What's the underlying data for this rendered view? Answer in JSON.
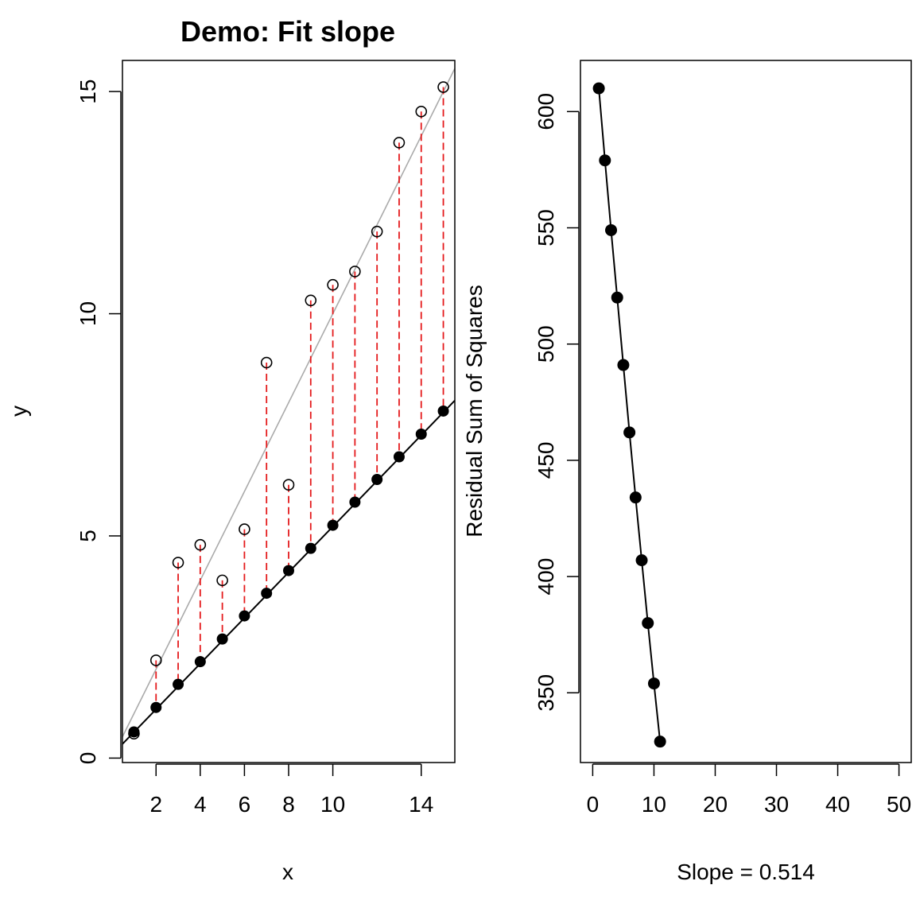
{
  "chart_data": [
    {
      "type": "scatter",
      "title": "Demo: Fit slope",
      "xlabel": "x",
      "ylabel": "y",
      "xlim": [
        0.48,
        15.52
      ],
      "ylim": [
        -0.1,
        15.7
      ],
      "x_ticks": [
        2,
        4,
        6,
        8,
        10,
        14
      ],
      "x_tick_labels": [
        "2",
        "4",
        "6",
        "8",
        "10",
        "14"
      ],
      "y_ticks": [
        0,
        5,
        10,
        15
      ],
      "y_tick_labels": [
        "0",
        "5",
        "10",
        "15"
      ],
      "grid": false,
      "legend": "none",
      "series": [
        {
          "marker": "open-circle",
          "x": [
            1,
            2,
            3,
            4,
            5,
            6,
            7,
            8,
            9,
            10,
            11,
            12,
            13,
            14,
            15
          ],
          "y": [
            0.55,
            2.2,
            4.4,
            4.8,
            4.0,
            5.15,
            8.9,
            6.15,
            10.3,
            10.65,
            10.95,
            11.85,
            13.85,
            14.55,
            15.1
          ]
        },
        {
          "marker": "filled-circle",
          "x": [
            1,
            2,
            3,
            4,
            5,
            6,
            7,
            8,
            9,
            10,
            11,
            12,
            13,
            14,
            15
          ],
          "y": [
            0.59,
            1.14,
            1.66,
            2.17,
            2.68,
            3.2,
            3.71,
            4.22,
            4.72,
            5.24,
            5.76,
            6.27,
            6.78,
            7.29,
            7.81
          ]
        }
      ],
      "lines": [
        {
          "role": "fitted-line",
          "slope": 0.514,
          "intercept": 0.07,
          "color": "#000000"
        },
        {
          "role": "reference-line",
          "slope": 1.0,
          "intercept": 0.0,
          "color": "#aaaaaa"
        }
      ],
      "residual_color": "#e41a1c"
    },
    {
      "type": "line",
      "title": "",
      "xlabel": "Slope = 0.514",
      "ylabel": "Residual Sum of Squares",
      "xlim": [
        -2,
        52
      ],
      "ylim": [
        320,
        622
      ],
      "x_ticks": [
        0,
        10,
        20,
        30,
        40,
        50
      ],
      "x_tick_labels": [
        "0",
        "10",
        "20",
        "30",
        "40",
        "50"
      ],
      "y_ticks": [
        350,
        400,
        450,
        500,
        550,
        600
      ],
      "y_tick_labels": [
        "350",
        "400",
        "450",
        "500",
        "550",
        "600"
      ],
      "grid": false,
      "legend": "none",
      "series": [
        {
          "marker": "filled-circle",
          "x": [
            1,
            2,
            3,
            4,
            5,
            6,
            7,
            8,
            9,
            10,
            11
          ],
          "y": [
            610,
            579,
            549,
            520,
            491,
            462,
            434,
            407,
            380,
            354,
            329
          ]
        }
      ]
    }
  ]
}
